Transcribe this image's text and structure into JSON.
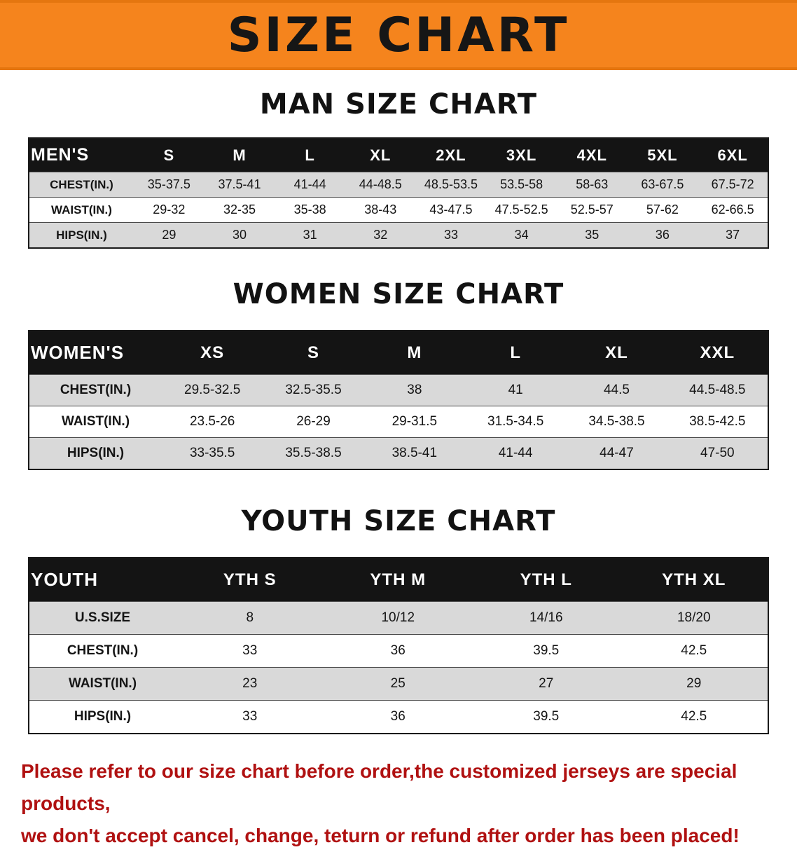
{
  "banner": {
    "title": "SIZE CHART",
    "bg_color": "#f5841d"
  },
  "sections": [
    {
      "heading": "MAN SIZE CHART",
      "table": {
        "header": [
          "MEN'S",
          "S",
          "M",
          "L",
          "XL",
          "2XL",
          "3XL",
          "4XL",
          "5XL",
          "6XL"
        ],
        "rows": [
          [
            "CHEST(IN.)",
            "35-37.5",
            "37.5-41",
            "41-44",
            "44-48.5",
            "48.5-53.5",
            "53.5-58",
            "58-63",
            "63-67.5",
            "67.5-72"
          ],
          [
            "WAIST(IN.)",
            "29-32",
            "32-35",
            "35-38",
            "38-43",
            "43-47.5",
            "47.5-52.5",
            "52.5-57",
            "57-62",
            "62-66.5"
          ],
          [
            "HIPS(IN.)",
            "29",
            "30",
            "31",
            "32",
            "33",
            "34",
            "35",
            "36",
            "37"
          ]
        ]
      }
    },
    {
      "heading": "WOMEN SIZE CHART",
      "table": {
        "header": [
          "WOMEN'S",
          "XS",
          "S",
          "M",
          "L",
          "XL",
          "XXL"
        ],
        "rows": [
          [
            "CHEST(IN.)",
            "29.5-32.5",
            "32.5-35.5",
            "38",
            "41",
            "44.5",
            "44.5-48.5"
          ],
          [
            "WAIST(IN.)",
            "23.5-26",
            "26-29",
            "29-31.5",
            "31.5-34.5",
            "34.5-38.5",
            "38.5-42.5"
          ],
          [
            "HIPS(IN.)",
            "33-35.5",
            "35.5-38.5",
            "38.5-41",
            "41-44",
            "44-47",
            "47-50"
          ]
        ]
      }
    },
    {
      "heading": "YOUTH SIZE CHART",
      "table": {
        "header": [
          "YOUTH",
          "YTH S",
          "YTH M",
          "YTH L",
          "YTH XL"
        ],
        "rows": [
          [
            "U.S.SIZE",
            "8",
            "10/12",
            "14/16",
            "18/20"
          ],
          [
            "CHEST(IN.)",
            "33",
            "36",
            "39.5",
            "42.5"
          ],
          [
            "WAIST(IN.)",
            "23",
            "25",
            "27",
            "29"
          ],
          [
            "HIPS(IN.)",
            "33",
            "36",
            "39.5",
            "42.5"
          ]
        ]
      }
    }
  ],
  "footer": {
    "lines": [
      "Please refer to our size chart before order,the customized jerseys are special products,",
      "we don't accept cancel, change, teturn or refund after order has been placed!"
    ],
    "color": "#b01111"
  }
}
